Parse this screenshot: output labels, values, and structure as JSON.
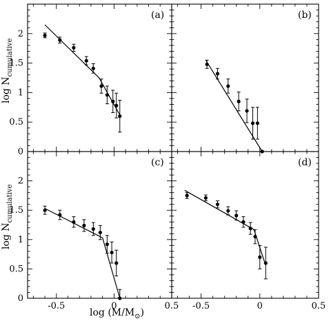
{
  "chart_data": [
    {
      "panel": "(a)",
      "type": "scatter",
      "xlim": [
        -0.75,
        0.5
      ],
      "ylim": [
        0,
        2.5
      ],
      "points": [
        {
          "x": -0.6,
          "y": 1.97,
          "err": 0.04
        },
        {
          "x": -0.47,
          "y": 1.89,
          "err": 0.05
        },
        {
          "x": -0.35,
          "y": 1.76,
          "err": 0.06
        },
        {
          "x": -0.24,
          "y": 1.54,
          "err": 0.07
        },
        {
          "x": -0.18,
          "y": 1.41,
          "err": 0.08
        },
        {
          "x": -0.11,
          "y": 1.11,
          "err": 0.12
        },
        {
          "x": -0.06,
          "y": 0.96,
          "err": 0.15
        },
        {
          "x": -0.01,
          "y": 0.85,
          "err": 0.19
        },
        {
          "x": 0.02,
          "y": 0.78,
          "err": 0.21
        },
        {
          "x": 0.05,
          "y": 0.6,
          "err": 0.27
        }
      ],
      "fit": [
        [
          -0.6,
          2.15
        ],
        [
          -0.13,
          1.25
        ],
        [
          0.05,
          0.62
        ]
      ]
    },
    {
      "panel": "(b)",
      "type": "scatter",
      "xlim": [
        -0.75,
        0.5
      ],
      "ylim": [
        0,
        2.5
      ],
      "points": [
        {
          "x": -0.45,
          "y": 1.48,
          "err": 0.07
        },
        {
          "x": -0.36,
          "y": 1.32,
          "err": 0.09
        },
        {
          "x": -0.27,
          "y": 1.11,
          "err": 0.12
        },
        {
          "x": -0.18,
          "y": 0.85,
          "err": 0.16
        },
        {
          "x": -0.11,
          "y": 0.69,
          "err": 0.2
        },
        {
          "x": -0.06,
          "y": 0.48,
          "err": 0.27
        },
        {
          "x": -0.02,
          "y": 0.48,
          "err": 0.27
        },
        {
          "x": 0.02,
          "y": 0.0,
          "err": 0
        }
      ],
      "fit": [
        [
          -0.46,
          1.55
        ],
        [
          0.02,
          0.0
        ]
      ]
    },
    {
      "panel": "(c)",
      "type": "scatter",
      "xlim": [
        -0.75,
        0.5
      ],
      "ylim": [
        0,
        2.5
      ],
      "points": [
        {
          "x": -0.6,
          "y": 1.5,
          "err": 0.07
        },
        {
          "x": -0.47,
          "y": 1.42,
          "err": 0.08
        },
        {
          "x": -0.35,
          "y": 1.3,
          "err": 0.09
        },
        {
          "x": -0.26,
          "y": 1.24,
          "err": 0.1
        },
        {
          "x": -0.18,
          "y": 1.18,
          "err": 0.11
        },
        {
          "x": -0.12,
          "y": 1.12,
          "err": 0.12
        },
        {
          "x": -0.06,
          "y": 0.92,
          "err": 0.15
        },
        {
          "x": -0.02,
          "y": 0.78,
          "err": 0.18
        },
        {
          "x": 0.02,
          "y": 0.6,
          "err": 0.22
        },
        {
          "x": 0.05,
          "y": 0.0,
          "err": 0.15
        }
      ],
      "fit": [
        [
          -0.6,
          1.53
        ],
        [
          -0.1,
          1.03
        ],
        [
          0.05,
          0.0
        ]
      ]
    },
    {
      "panel": "(d)",
      "type": "scatter",
      "xlim": [
        -0.75,
        0.5
      ],
      "ylim": [
        0,
        2.5
      ],
      "points": [
        {
          "x": -0.62,
          "y": 1.75,
          "err": 0.05
        },
        {
          "x": -0.46,
          "y": 1.71,
          "err": 0.05
        },
        {
          "x": -0.36,
          "y": 1.6,
          "err": 0.06
        },
        {
          "x": -0.27,
          "y": 1.49,
          "err": 0.07
        },
        {
          "x": -0.2,
          "y": 1.41,
          "err": 0.08
        },
        {
          "x": -0.14,
          "y": 1.3,
          "err": 0.09
        },
        {
          "x": -0.08,
          "y": 1.19,
          "err": 0.1
        },
        {
          "x": -0.04,
          "y": 1.05,
          "err": 0.12
        },
        {
          "x": 0.0,
          "y": 0.7,
          "err": 0.2
        },
        {
          "x": 0.05,
          "y": 0.6,
          "err": 0.27
        }
      ],
      "fit": [
        [
          -0.64,
          1.84
        ],
        [
          -0.05,
          1.17
        ],
        [
          0.04,
          0.62
        ]
      ]
    }
  ],
  "axes": {
    "y_ticks": [
      "0",
      "0.5",
      "1",
      "1.5",
      "2"
    ],
    "y_tick_values": [
      0,
      0.5,
      1,
      1.5,
      2
    ],
    "x_ticks_left": [
      "-0.5",
      "0",
      "0.5"
    ],
    "x_ticks_right": [
      "-0.5",
      "0",
      "0.5"
    ],
    "x_tick_values": [
      -0.5,
      0,
      0.5
    ],
    "x_title_main": "log (M/M",
    "x_title_sub": "⊙",
    "x_title_end": ")",
    "y_title_main": "log N",
    "y_title_sub": "cumulative"
  }
}
